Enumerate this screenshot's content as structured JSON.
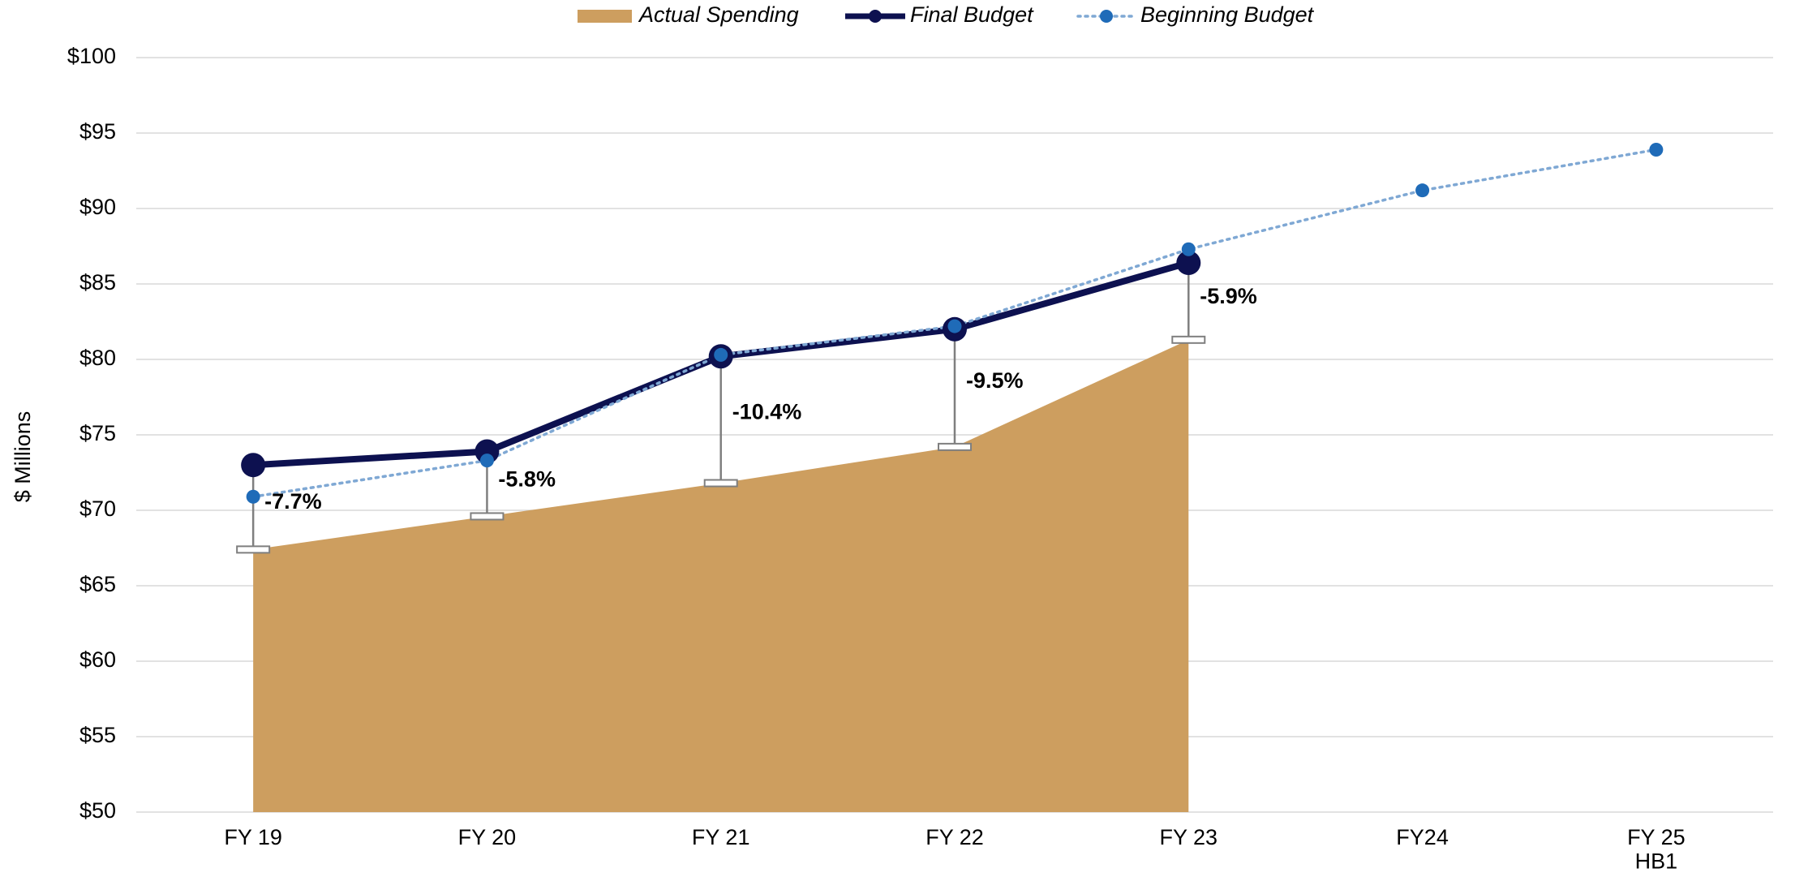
{
  "chart_data": {
    "type": "line",
    "y_label": "$ Millions",
    "categories": [
      "FY 19",
      "FY 20",
      "FY 21",
      "FY 22",
      "FY 23",
      "FY24",
      "FY 25\nHB1"
    ],
    "series": [
      {
        "name": "Actual Spending",
        "kind": "area",
        "color": "#cd9e5f",
        "values": [
          67.4,
          69.6,
          71.8,
          74.2,
          81.3,
          null,
          null
        ]
      },
      {
        "name": "Final Budget",
        "kind": "line",
        "color": "#0d1150",
        "values": [
          73.0,
          73.9,
          80.2,
          82.0,
          86.4,
          null,
          null
        ]
      },
      {
        "name": "Beginning Budget",
        "kind": "dotted",
        "color": "#1f6bb8",
        "line_color": "#7fa8d4",
        "values": [
          70.9,
          73.3,
          80.3,
          82.2,
          87.3,
          91.2,
          93.9
        ]
      }
    ],
    "annotations": [
      "-7.7%",
      "-5.8%",
      "-10.4%",
      "-9.5%",
      "-5.9%"
    ],
    "ylim": [
      50,
      100
    ],
    "yticks": [
      {
        "value": 50,
        "label": "$50"
      },
      {
        "value": 55,
        "label": "$55"
      },
      {
        "value": 60,
        "label": "$60"
      },
      {
        "value": 65,
        "label": "$65"
      },
      {
        "value": 70,
        "label": "$70"
      },
      {
        "value": 75,
        "label": "$75"
      },
      {
        "value": 80,
        "label": "$80"
      },
      {
        "value": 85,
        "label": "$85"
      },
      {
        "value": 90,
        "label": "$90"
      },
      {
        "value": 95,
        "label": "$95"
      },
      {
        "value": 100,
        "label": "$100"
      }
    ],
    "grid": true,
    "legend": "top"
  }
}
